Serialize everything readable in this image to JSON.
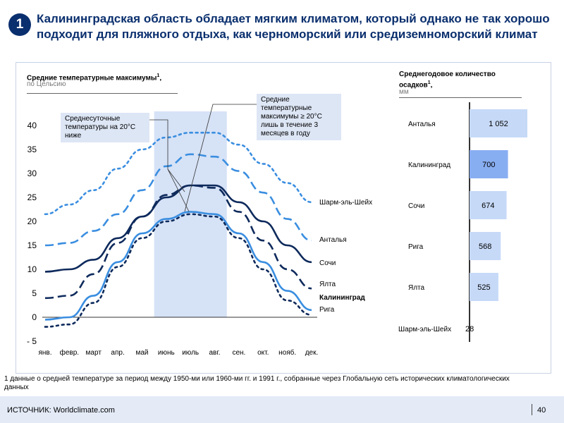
{
  "badge": "1",
  "title": "Калининградская область обладает мягким климатом, который однако не так хорошо подходит для пляжного отдыха, как черноморский или средиземноморский климат",
  "left_header": {
    "title": "Средние температурные максимумы",
    "sup": "1",
    "suffix": ",",
    "subtitle": "по Цельсию"
  },
  "right_header": {
    "title_line1": "Среднегодовое количество",
    "title_line2": "осадков",
    "sup": "1",
    "suffix": ",",
    "subtitle": "мм"
  },
  "callouts": {
    "daily": "Среднесуточные температуры  на 20°C ниже",
    "max": "Средние температурные максимумы ≥ 20°C лишь в течение  3 месяцев в году"
  },
  "footnote": "1 данные о средней температуре  за период между 1950-ми  или 1960-ми гг. и 1991 г., собранные  через Глобальную  сеть исторических климатологических  данных",
  "source": "ИСТОЧНИК:  Worldclimate.com",
  "page_number": "40",
  "colors": {
    "light_blue": "#3a8ee0",
    "navy": "#0e2a5c",
    "highlight": "#d6e2f6",
    "bar": "#c6d9f7",
    "bar_highlight": "#88aef2",
    "title": "#0a2f6e"
  },
  "chart_data": [
    {
      "type": "line",
      "categories": [
        "янв.",
        "февр.",
        "март",
        "апр.",
        "май",
        "июнь",
        "июль",
        "авг.",
        "сен.",
        "окт.",
        "нояб.",
        "дек."
      ],
      "ylim": [
        -5,
        40
      ],
      "yticks": [
        "- 5",
        "0",
        "5",
        "10",
        "15",
        "20",
        "25",
        "30",
        "35",
        "40"
      ],
      "highlight_months": [
        "июнь",
        "авг."
      ],
      "series": [
        {
          "name": "Шарм-эль-Шейх",
          "values": [
            21.5,
            23.5,
            26.5,
            31,
            35,
            37.5,
            38.5,
            38.5,
            36,
            32,
            28,
            24
          ],
          "color": "#3a8ee0",
          "style": "dotted"
        },
        {
          "name": "Анталья",
          "values": [
            15,
            15.5,
            18,
            21.5,
            26.5,
            31.5,
            34,
            33.5,
            30.5,
            26,
            20.5,
            16
          ],
          "color": "#3a8ee0",
          "style": "dashed"
        },
        {
          "name": "Сочи",
          "values": [
            9.5,
            10,
            12,
            16.5,
            21,
            25,
            27.5,
            27.5,
            24,
            20,
            15,
            11.5
          ],
          "color": "#0e2a5c",
          "style": "solid"
        },
        {
          "name": "Ялта",
          "values": [
            4,
            4.5,
            9,
            15.5,
            21,
            25.5,
            27.5,
            27,
            22,
            16,
            10,
            6
          ],
          "color": "#0e2a5c",
          "style": "dashed"
        },
        {
          "name": "Калининград",
          "values": [
            -0.5,
            0,
            4.5,
            11.5,
            17.5,
            20.5,
            22,
            21.5,
            17.5,
            11.5,
            5.5,
            1.5
          ],
          "color": "#3a8ee0",
          "style": "solid"
        },
        {
          "name": "Рига",
          "values": [
            -2,
            -1.5,
            3,
            10.5,
            16.5,
            20,
            21.5,
            21,
            16.5,
            10,
            3.5,
            0.5
          ],
          "color": "#0e2a5c",
          "style": "dotted"
        }
      ]
    },
    {
      "type": "bar",
      "orientation": "horizontal",
      "categories": [
        "Анталья",
        "Калининград",
        "Сочи",
        "Рига",
        "Ялта",
        "Шарм-эль-Шейх"
      ],
      "values": [
        1052,
        700,
        674,
        568,
        525,
        28
      ],
      "labels": [
        "1 052",
        "700",
        "674",
        "568",
        "525",
        "28"
      ],
      "highlight": "Калининград"
    }
  ]
}
